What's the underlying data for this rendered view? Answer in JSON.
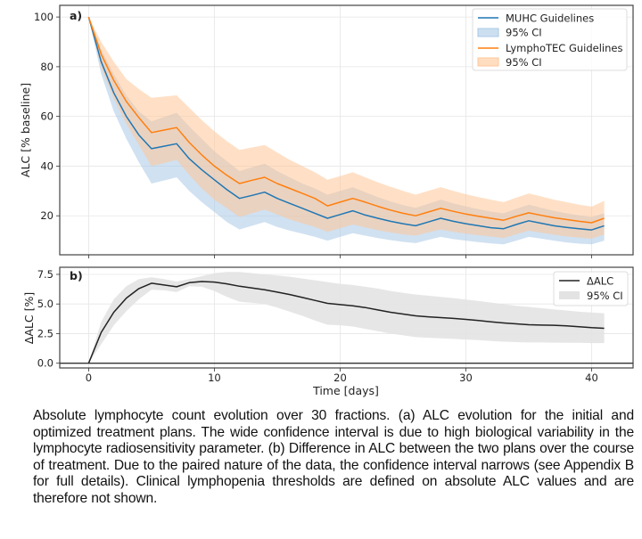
{
  "chart_data": [
    {
      "panel_label": "a)",
      "type": "line",
      "xlabel": "",
      "ylabel": "ALC [% baseline]",
      "xlim": [
        -2.3,
        43.3
      ],
      "ylim": [
        4.3,
        104.7
      ],
      "xticks": [
        0,
        10,
        20,
        30,
        40
      ],
      "yticks": [
        20,
        40,
        60,
        80,
        100
      ],
      "ytick_labels": [
        "20",
        "40",
        "60",
        "80",
        "100"
      ],
      "grid": true,
      "legend_position": "top-right",
      "x": [
        0,
        1,
        2,
        3,
        4,
        5,
        6,
        7,
        8,
        9,
        10,
        11,
        12,
        13,
        14,
        15,
        16,
        17,
        18,
        19,
        20,
        21,
        22,
        23,
        24,
        25,
        26,
        27,
        28,
        29,
        30,
        31,
        32,
        33,
        34,
        35,
        36,
        37,
        38,
        39,
        40,
        41
      ],
      "series": [
        {
          "name": "MUHC Guidelines",
          "color": "#1f77b4",
          "ci_name": "95% CI",
          "ci_color": "#aac9e6",
          "values": [
            100,
            82,
            69.5,
            60,
            52.5,
            47,
            48,
            49,
            43,
            38.5,
            34.5,
            30.5,
            27,
            28.2,
            29.5,
            27,
            25,
            23,
            21,
            19,
            20.5,
            22,
            20.3,
            19,
            17.8,
            16.8,
            16,
            17.5,
            19,
            17.8,
            16.8,
            16,
            15.2,
            14.8,
            16.5,
            18,
            17,
            16,
            15.3,
            14.8,
            14.3,
            16
          ],
          "ci_lower": [
            100,
            77,
            62,
            51,
            41.5,
            33,
            34.2,
            35.5,
            30,
            25.5,
            21.5,
            17.5,
            14.5,
            16,
            17.5,
            15.5,
            14,
            12.8,
            11.5,
            10,
            11.5,
            13,
            12,
            11,
            10.2,
            9.5,
            9,
            10.3,
            11.5,
            10.6,
            10,
            9.4,
            8.9,
            8.5,
            10,
            11.5,
            10.8,
            10,
            9.3,
            8.8,
            8.5,
            10
          ],
          "ci_upper": [
            100,
            87,
            77,
            68.5,
            62,
            58,
            59.8,
            61.5,
            56,
            51,
            46,
            42,
            38,
            39.5,
            41,
            38,
            35.5,
            33,
            31,
            28.5,
            30,
            31.5,
            29.5,
            27.5,
            25.8,
            24.3,
            23.2,
            24.8,
            26.5,
            25,
            23.8,
            22.7,
            21.7,
            21,
            22.8,
            24.5,
            23.2,
            22,
            21,
            20.2,
            19.5,
            21
          ]
        },
        {
          "name": "LymphoTEC Guidelines",
          "color": "#ff7f0e",
          "ci_name": "95% CI",
          "ci_color": "#ffc797",
          "values": [
            100,
            85,
            74.5,
            66,
            59.5,
            53.5,
            54.5,
            55.5,
            49.5,
            44.5,
            40,
            36.3,
            33,
            34.3,
            35.5,
            33,
            31,
            29,
            27,
            24,
            25.5,
            27,
            25.5,
            23.8,
            22.3,
            21,
            20,
            21.5,
            23,
            21.8,
            20.7,
            19.8,
            19,
            18.2,
            19.8,
            21.2,
            20.2,
            19.2,
            18.5,
            17.8,
            17.2,
            19
          ],
          "ci_lower": [
            100,
            79.5,
            67,
            57,
            48.5,
            40,
            41.2,
            42.5,
            36.5,
            31,
            26.5,
            23,
            19.5,
            21,
            22.5,
            20.5,
            18.5,
            17,
            15.5,
            13.5,
            15,
            16.5,
            15.3,
            14.2,
            13.3,
            12.5,
            12,
            13.3,
            14.5,
            13.5,
            12.8,
            12.2,
            11.6,
            11,
            12.6,
            14,
            13.2,
            12.4,
            11.7,
            11.2,
            10.8,
            12.5
          ],
          "ci_upper": [
            100,
            90,
            82,
            75,
            71,
            67.5,
            68,
            68.5,
            63.5,
            58.5,
            54,
            50,
            46.5,
            47.5,
            48.5,
            45.5,
            42.5,
            40,
            37.5,
            34.5,
            36,
            37.5,
            35.5,
            33.5,
            31.7,
            30,
            28.5,
            30,
            31.5,
            30,
            28.7,
            27.5,
            26.5,
            25.5,
            27.3,
            29,
            27.8,
            26.5,
            25.5,
            24.5,
            23.7,
            26
          ]
        }
      ]
    },
    {
      "panel_label": "b)",
      "type": "line",
      "xlabel": "Time [days]",
      "ylabel": "ΔALC [%]",
      "xlim": [
        -2.3,
        43.3
      ],
      "ylim": [
        -0.4,
        8.1
      ],
      "xticks": [
        0,
        10,
        20,
        30,
        40
      ],
      "xtick_labels": [
        "0",
        "10",
        "20",
        "30",
        "40"
      ],
      "yticks": [
        0.0,
        2.5,
        5.0,
        7.5
      ],
      "ytick_labels": [
        "0.0",
        "2.5",
        "5.0",
        "7.5"
      ],
      "grid": true,
      "legend_position": "top-right",
      "x": [
        0,
        1,
        2,
        3,
        4,
        5,
        6,
        7,
        8,
        9,
        10,
        11,
        12,
        13,
        14,
        15,
        16,
        17,
        18,
        19,
        20,
        21,
        22,
        23,
        24,
        25,
        26,
        27,
        28,
        29,
        30,
        31,
        32,
        33,
        34,
        35,
        36,
        37,
        38,
        39,
        40,
        41
      ],
      "series": [
        {
          "name": "ΔALC",
          "color": "#222222",
          "ci_name": "95% CI",
          "ci_color": "#e3e3e3",
          "values": [
            0,
            2.6,
            4.3,
            5.5,
            6.3,
            6.75,
            6.6,
            6.45,
            6.8,
            6.9,
            6.85,
            6.7,
            6.5,
            6.35,
            6.2,
            6.0,
            5.8,
            5.55,
            5.3,
            5.05,
            4.95,
            4.85,
            4.7,
            4.5,
            4.3,
            4.15,
            4.0,
            3.92,
            3.85,
            3.78,
            3.7,
            3.6,
            3.5,
            3.4,
            3.32,
            3.25,
            3.22,
            3.2,
            3.15,
            3.08,
            3.0,
            2.95
          ],
          "ci_lower": [
            0,
            1.6,
            3.2,
            4.4,
            5.4,
            6.2,
            6.15,
            6.0,
            6.5,
            6.45,
            6.1,
            5.6,
            5.2,
            5.1,
            5.0,
            4.7,
            4.35,
            4.0,
            3.6,
            3.25,
            3.2,
            3.1,
            2.9,
            2.7,
            2.5,
            2.35,
            2.2,
            2.15,
            2.1,
            2.05,
            2.0,
            1.95,
            1.88,
            1.82,
            1.78,
            1.75,
            1.75,
            1.74,
            1.73,
            1.72,
            1.7,
            1.7
          ],
          "ci_upper": [
            0,
            3.5,
            5.4,
            6.5,
            7.1,
            7.25,
            7.1,
            6.9,
            7.1,
            7.35,
            7.6,
            7.7,
            7.7,
            7.6,
            7.5,
            7.4,
            7.3,
            7.15,
            7.0,
            6.85,
            6.7,
            6.6,
            6.45,
            6.3,
            6.1,
            5.95,
            5.8,
            5.7,
            5.6,
            5.5,
            5.38,
            5.25,
            5.12,
            4.98,
            4.85,
            4.75,
            4.65,
            4.55,
            4.45,
            4.35,
            4.28,
            4.22
          ]
        }
      ]
    }
  ],
  "caption": "Absolute lymphocyte count evolution over 30 fractions. (a) ALC evolution for the initial and optimized treatment plans. The wide confidence interval is due to high biological variability in the lymphocyte radiosensitivity parameter. (b) Difference in ALC between the two plans over the course of treatment. Due to the paired nature of the data, the confidence interval narrows (see Appendix B for full details). Clinical lymphopenia thresholds are defined on absolute ALC values and are therefore not shown."
}
